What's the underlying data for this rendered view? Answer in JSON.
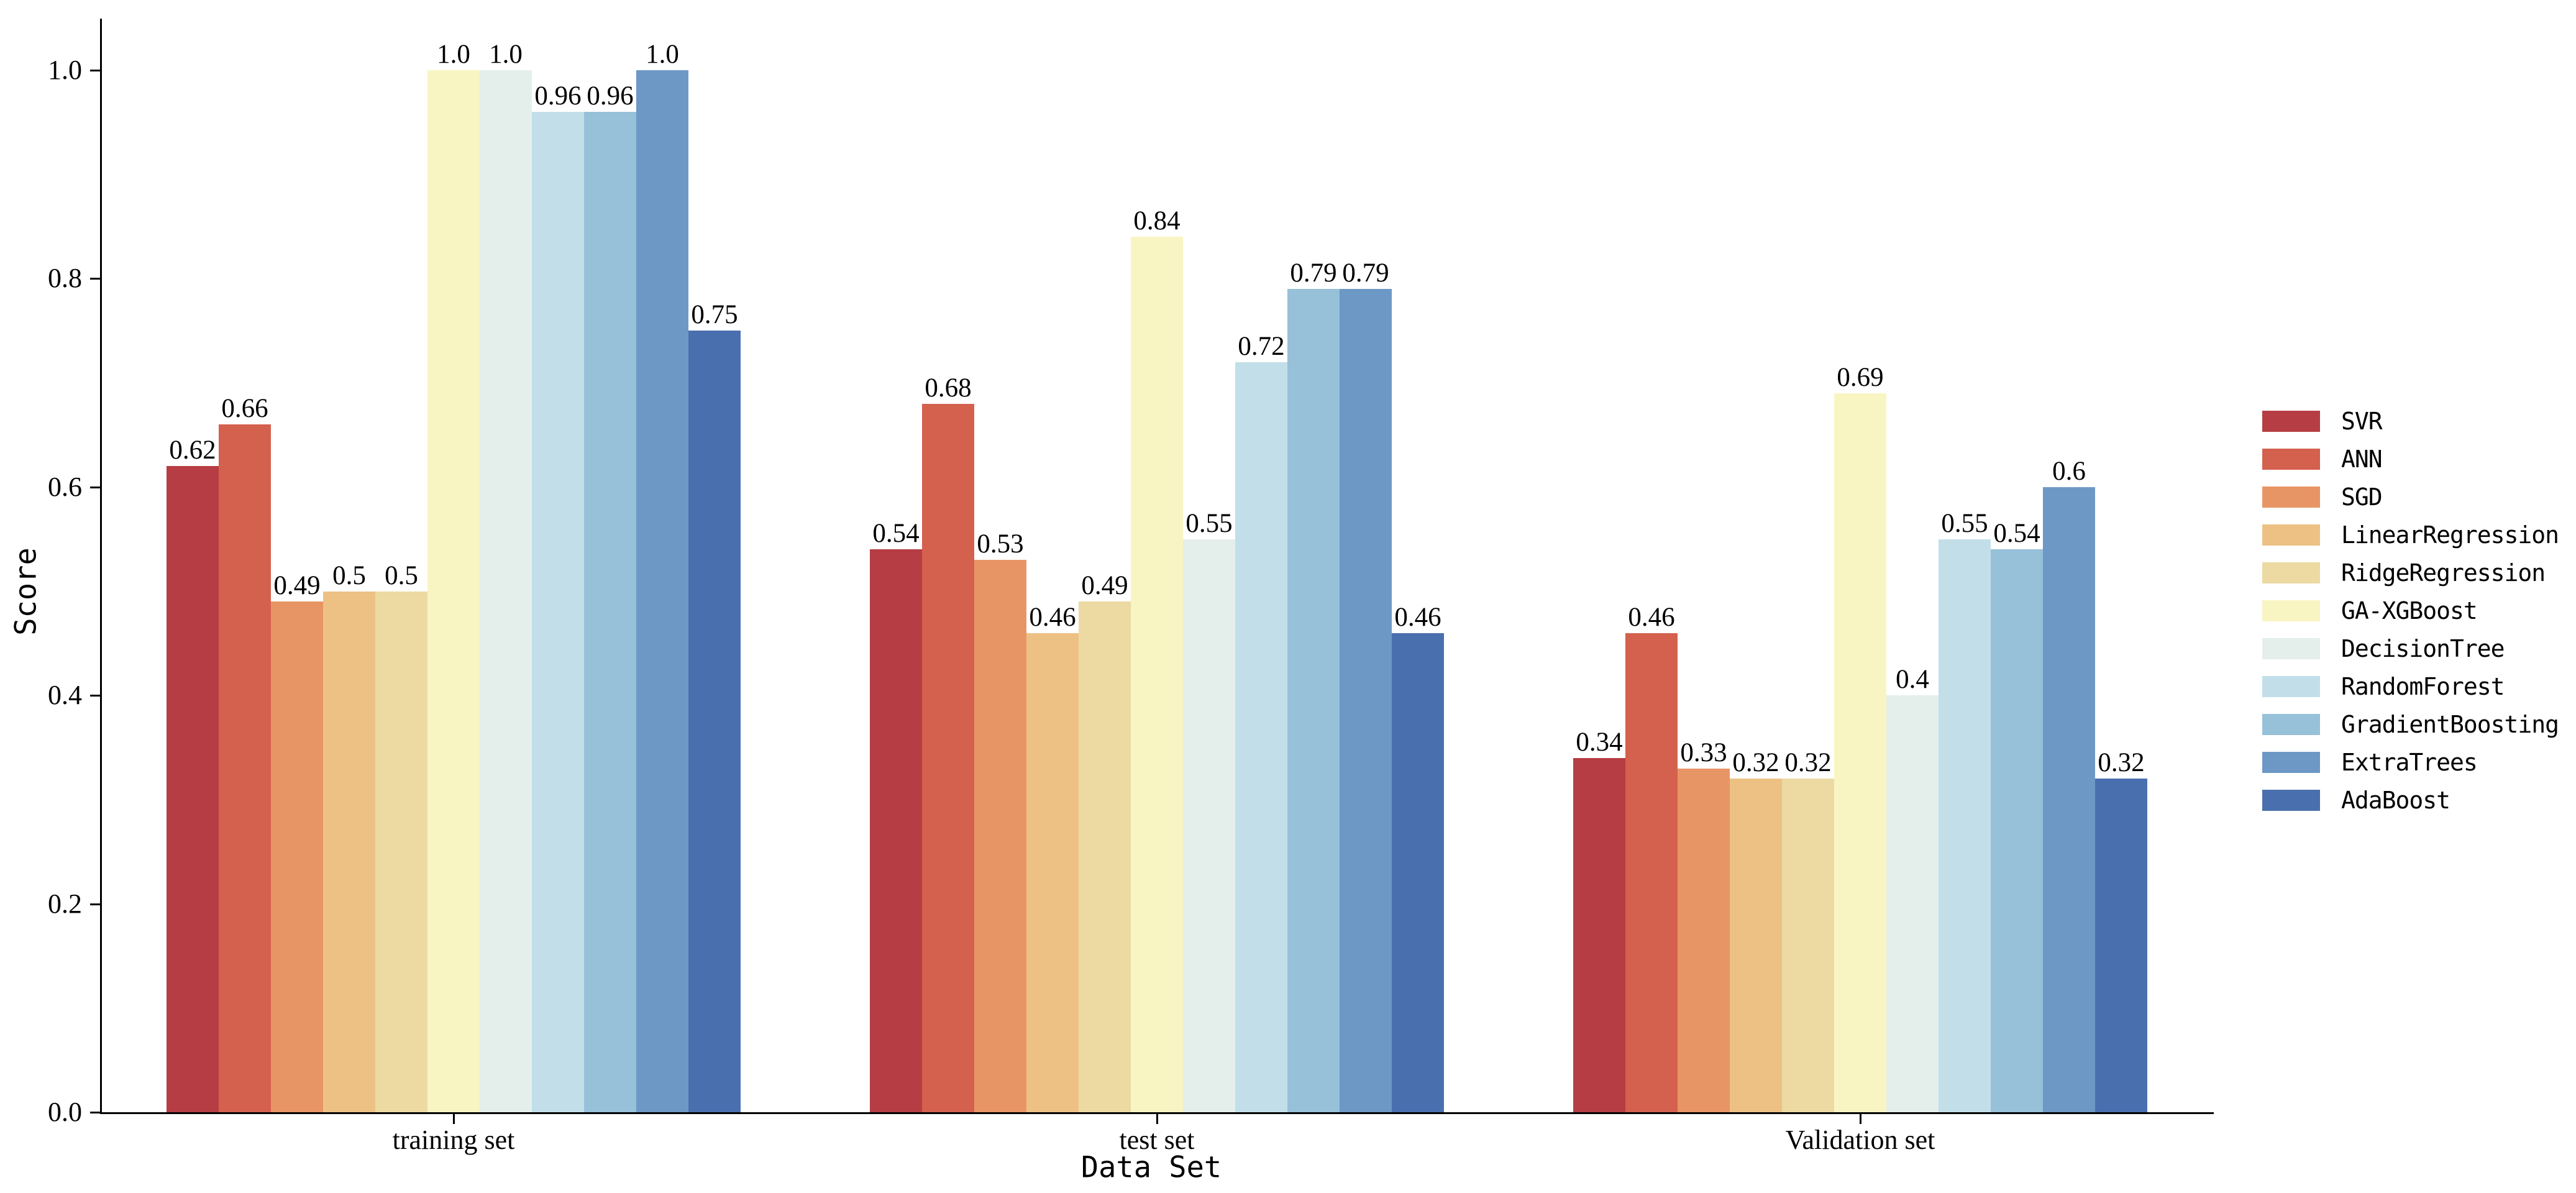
{
  "chart_data": {
    "type": "bar",
    "title": "",
    "xlabel": "Data Set",
    "ylabel": "Score",
    "categories": [
      "training set",
      "test set",
      "Validation set"
    ],
    "yticks": [
      "0.0",
      "0.2",
      "0.4",
      "0.6",
      "0.8",
      "1.0"
    ],
    "ylim": [
      0.0,
      1.05
    ],
    "grid": false,
    "bar_value_labels": true,
    "legend_position": "right",
    "series": [
      {
        "name": "SVR",
        "color": "#b63d43",
        "values": [
          0.62,
          0.54,
          0.34
        ]
      },
      {
        "name": "ANN",
        "color": "#d4604e",
        "values": [
          0.66,
          0.68,
          0.46
        ]
      },
      {
        "name": "SGD",
        "color": "#e89565",
        "values": [
          0.49,
          0.53,
          0.33
        ]
      },
      {
        "name": "LinearRegression",
        "color": "#edc184",
        "values": [
          0.5,
          0.46,
          0.32
        ]
      },
      {
        "name": "RidgeRegression",
        "color": "#ecdaa2",
        "values": [
          0.5,
          0.49,
          0.32
        ]
      },
      {
        "name": "GA-XGBoost",
        "color": "#f8f5c3",
        "values": [
          1.0,
          0.84,
          0.69
        ]
      },
      {
        "name": "DecisionTree",
        "color": "#e4efeb",
        "values": [
          1.0,
          0.55,
          0.4
        ]
      },
      {
        "name": "RandomForest",
        "color": "#c2dfe9",
        "values": [
          0.96,
          0.72,
          0.55
        ]
      },
      {
        "name": "GradientBoosting",
        "color": "#97c0d9",
        "values": [
          0.96,
          0.79,
          0.54
        ]
      },
      {
        "name": "ExtraTrees",
        "color": "#6d98c5",
        "values": [
          1.0,
          0.79,
          0.6
        ]
      },
      {
        "name": "AdaBoost",
        "color": "#4a6fae",
        "values": [
          0.75,
          0.46,
          0.32
        ]
      }
    ],
    "axis_color": "#000000"
  }
}
